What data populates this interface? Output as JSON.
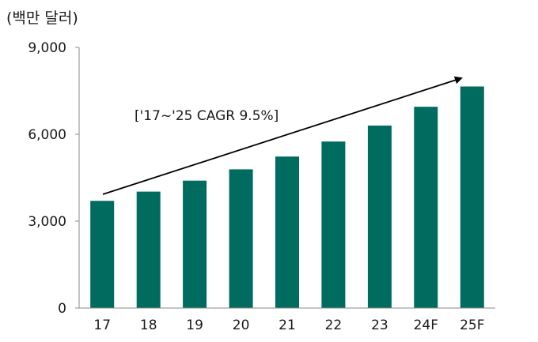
{
  "chart_data": {
    "type": "bar",
    "unit_label": "(백만 달러)",
    "categories": [
      "17",
      "18",
      "19",
      "20",
      "21",
      "22",
      "23",
      "24F",
      "25F"
    ],
    "values": [
      3700,
      4020,
      4400,
      4790,
      5230,
      5750,
      6300,
      6950,
      7650
    ],
    "ylim": [
      0,
      9000
    ],
    "yticks": [
      "0",
      "3,000",
      "6,000",
      "9,000"
    ],
    "ytick_values": [
      0,
      3000,
      6000,
      9000
    ],
    "annotation": "['17~'25 CAGR 9.5%]",
    "bar_color": "#006b5f",
    "grid": false,
    "legend": "none"
  }
}
